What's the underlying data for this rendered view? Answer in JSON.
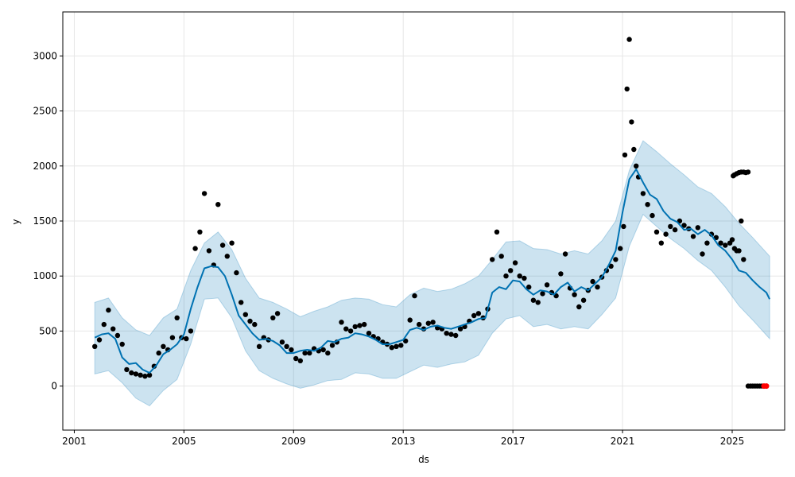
{
  "chart_data": {
    "type": "line",
    "title": "",
    "xlabel": "ds",
    "ylabel": "y",
    "grid": true,
    "xlim": [
      "2000-08-01",
      "2026-12-01"
    ],
    "ylim": [
      -400,
      3400
    ],
    "xticks": [
      "2001-01-01",
      "2005-01-01",
      "2009-01-01",
      "2013-01-01",
      "2017-01-01",
      "2021-01-01",
      "2025-01-01"
    ],
    "xtick_labels": [
      "2001",
      "2005",
      "2009",
      "2013",
      "2017",
      "2021",
      "2025"
    ],
    "yticks": [
      0,
      500,
      1000,
      1500,
      2000,
      2500,
      3000
    ],
    "ytick_labels": [
      "0",
      "500",
      "1000",
      "1500",
      "2000",
      "2500",
      "3000"
    ],
    "colors": {
      "observed": "#000000",
      "forecast_line": "#0072B2",
      "uncertainty_band": "#0072B2",
      "highlight_points": "#ff0000",
      "grid": "#e6e6e6"
    },
    "series": [
      {
        "role": "forecast",
        "x": [
          "2001-10-01",
          "2002-01-01",
          "2002-04-01",
          "2002-07-01",
          "2002-10-01",
          "2003-01-01",
          "2003-04-01",
          "2003-07-01",
          "2003-10-01",
          "2004-01-01",
          "2004-04-01",
          "2004-07-01",
          "2004-10-01",
          "2005-01-01",
          "2005-04-01",
          "2005-07-01",
          "2005-10-01",
          "2006-01-01",
          "2006-04-01",
          "2006-07-01",
          "2006-10-01",
          "2007-01-01",
          "2007-04-01",
          "2007-07-01",
          "2007-10-01",
          "2008-01-01",
          "2008-04-01",
          "2008-07-01",
          "2008-10-01",
          "2009-01-01",
          "2009-04-01",
          "2009-07-01",
          "2009-10-01",
          "2010-01-01",
          "2010-04-01",
          "2010-07-01",
          "2010-10-01",
          "2011-01-01",
          "2011-04-01",
          "2011-07-01",
          "2011-10-01",
          "2012-01-01",
          "2012-04-01",
          "2012-07-01",
          "2012-10-01",
          "2013-01-01",
          "2013-04-01",
          "2013-07-01",
          "2013-10-01",
          "2014-01-01",
          "2014-04-01",
          "2014-07-01",
          "2014-10-01",
          "2015-01-01",
          "2015-04-01",
          "2015-07-01",
          "2015-10-01",
          "2016-01-01",
          "2016-04-01",
          "2016-07-01",
          "2016-10-01",
          "2017-01-01",
          "2017-04-01",
          "2017-07-01",
          "2017-10-01",
          "2018-01-01",
          "2018-04-01",
          "2018-07-01",
          "2018-10-01",
          "2019-01-01",
          "2019-04-01",
          "2019-07-01",
          "2019-10-01",
          "2020-01-01",
          "2020-04-01",
          "2020-07-01",
          "2020-10-01",
          "2021-01-01",
          "2021-04-01",
          "2021-07-01",
          "2021-10-01",
          "2022-01-01",
          "2022-04-01",
          "2022-07-01",
          "2022-10-01",
          "2023-01-01",
          "2023-04-01",
          "2023-07-01",
          "2023-10-01",
          "2024-01-01",
          "2024-04-01",
          "2024-07-01",
          "2024-10-01",
          "2025-01-01",
          "2025-04-01",
          "2025-07-01",
          "2025-10-01",
          "2026-01-01",
          "2026-04-01",
          "2026-05-15"
        ],
        "y": [
          440,
          470,
          480,
          430,
          260,
          200,
          210,
          150,
          120,
          190,
          290,
          330,
          380,
          470,
          700,
          900,
          1070,
          1090,
          1080,
          1000,
          830,
          640,
          560,
          480,
          420,
          430,
          410,
          370,
          300,
          300,
          320,
          330,
          320,
          350,
          410,
          400,
          430,
          440,
          480,
          470,
          450,
          420,
          380,
          380,
          400,
          420,
          510,
          530,
          510,
          540,
          550,
          530,
          520,
          540,
          560,
          580,
          610,
          620,
          850,
          900,
          880,
          960,
          950,
          880,
          830,
          870,
          860,
          830,
          900,
          940,
          860,
          900,
          870,
          930,
          990,
          1100,
          1230,
          1580,
          1880,
          1970,
          1850,
          1740,
          1700,
          1590,
          1520,
          1490,
          1420,
          1430,
          1380,
          1420,
          1370,
          1280,
          1230,
          1150,
          1050,
          1030,
          960,
          900,
          850,
          790
        ]
      },
      {
        "role": "uncertainty_band",
        "x": [
          "2001-10-01",
          "2002-04-01",
          "2002-10-01",
          "2003-04-01",
          "2003-10-01",
          "2004-04-01",
          "2004-10-01",
          "2005-04-01",
          "2005-10-01",
          "2006-04-01",
          "2006-10-01",
          "2007-04-01",
          "2007-10-01",
          "2008-04-01",
          "2008-10-01",
          "2009-04-01",
          "2009-10-01",
          "2010-04-01",
          "2010-10-01",
          "2011-04-01",
          "2011-10-01",
          "2012-04-01",
          "2012-10-01",
          "2013-04-01",
          "2013-10-01",
          "2014-04-01",
          "2014-10-01",
          "2015-04-01",
          "2015-10-01",
          "2016-04-01",
          "2016-10-01",
          "2017-04-01",
          "2017-10-01",
          "2018-04-01",
          "2018-10-01",
          "2019-04-01",
          "2019-10-01",
          "2020-04-01",
          "2020-10-01",
          "2021-04-01",
          "2021-10-01",
          "2022-04-01",
          "2022-10-01",
          "2023-04-01",
          "2023-10-01",
          "2024-04-01",
          "2024-10-01",
          "2025-04-01",
          "2025-10-01",
          "2026-05-15"
        ],
        "upper": [
          760,
          800,
          620,
          510,
          460,
          620,
          700,
          1050,
          1300,
          1400,
          1240,
          980,
          800,
          760,
          700,
          630,
          680,
          720,
          780,
          800,
          790,
          740,
          720,
          830,
          890,
          860,
          880,
          930,
          1000,
          1150,
          1310,
          1320,
          1250,
          1240,
          1200,
          1230,
          1200,
          1320,
          1500,
          1960,
          2230,
          2130,
          2020,
          1920,
          1810,
          1750,
          1630,
          1480,
          1350,
          1180
        ],
        "lower": [
          110,
          140,
          30,
          -110,
          -180,
          -40,
          60,
          380,
          790,
          800,
          620,
          320,
          140,
          70,
          20,
          -20,
          10,
          50,
          60,
          120,
          110,
          70,
          70,
          130,
          190,
          170,
          200,
          220,
          280,
          480,
          610,
          640,
          540,
          560,
          520,
          540,
          520,
          650,
          800,
          1270,
          1560,
          1450,
          1340,
          1250,
          1140,
          1050,
          900,
          730,
          600,
          430
        ]
      },
      {
        "role": "observed",
        "x": [
          "2001-10-01",
          "2001-12-01",
          "2002-02-01",
          "2002-04-01",
          "2002-06-01",
          "2002-08-01",
          "2002-10-01",
          "2002-12-01",
          "2003-02-01",
          "2003-04-01",
          "2003-06-01",
          "2003-08-01",
          "2003-10-01",
          "2003-12-01",
          "2004-02-01",
          "2004-04-01",
          "2004-06-01",
          "2004-08-01",
          "2004-10-01",
          "2004-12-01",
          "2005-02-01",
          "2005-04-01",
          "2005-06-01",
          "2005-08-01",
          "2005-10-01",
          "2005-12-01",
          "2006-02-01",
          "2006-04-01",
          "2006-06-01",
          "2006-08-01",
          "2006-10-01",
          "2006-12-01",
          "2007-02-01",
          "2007-04-01",
          "2007-06-01",
          "2007-08-01",
          "2007-10-01",
          "2007-12-01",
          "2008-02-01",
          "2008-04-01",
          "2008-06-01",
          "2008-08-01",
          "2008-10-01",
          "2008-12-01",
          "2009-02-01",
          "2009-04-01",
          "2009-06-01",
          "2009-08-01",
          "2009-10-01",
          "2009-12-01",
          "2010-02-01",
          "2010-04-01",
          "2010-06-01",
          "2010-08-01",
          "2010-10-01",
          "2010-12-01",
          "2011-02-01",
          "2011-04-01",
          "2011-06-01",
          "2011-08-01",
          "2011-10-01",
          "2011-12-01",
          "2012-02-01",
          "2012-04-01",
          "2012-06-01",
          "2012-08-01",
          "2012-10-01",
          "2012-12-01",
          "2013-02-01",
          "2013-04-01",
          "2013-06-01",
          "2013-08-01",
          "2013-10-01",
          "2013-12-01",
          "2014-02-01",
          "2014-04-01",
          "2014-06-01",
          "2014-08-01",
          "2014-10-01",
          "2014-12-01",
          "2015-02-01",
          "2015-04-01",
          "2015-06-01",
          "2015-08-01",
          "2015-10-01",
          "2015-12-01",
          "2016-02-01",
          "2016-04-01",
          "2016-06-01",
          "2016-08-01",
          "2016-10-01",
          "2016-12-01",
          "2017-02-01",
          "2017-04-01",
          "2017-06-01",
          "2017-08-01",
          "2017-10-01",
          "2017-12-01",
          "2018-02-01",
          "2018-04-01",
          "2018-06-01",
          "2018-08-01",
          "2018-10-01",
          "2018-12-01",
          "2019-02-01",
          "2019-04-01",
          "2019-06-01",
          "2019-08-01",
          "2019-10-01",
          "2019-12-01",
          "2020-02-01",
          "2020-04-01",
          "2020-06-01",
          "2020-08-01",
          "2020-10-01",
          "2020-12-01",
          "2021-01-15",
          "2021-02-01",
          "2021-03-01",
          "2021-04-01",
          "2021-05-01",
          "2021-06-01",
          "2021-07-01",
          "2021-08-01",
          "2021-10-01",
          "2021-12-01",
          "2022-02-01",
          "2022-04-01",
          "2022-06-01",
          "2022-08-01",
          "2022-10-01",
          "2022-12-01",
          "2023-02-01",
          "2023-04-01",
          "2023-06-01",
          "2023-08-01",
          "2023-10-01",
          "2023-12-01",
          "2024-02-01",
          "2024-04-01",
          "2024-06-01",
          "2024-08-01",
          "2024-10-01",
          "2024-12-01",
          "2025-01-01",
          "2025-02-01",
          "2025-03-01",
          "2025-04-01",
          "2025-05-01",
          "2025-06-01"
        ],
        "y": [
          360,
          420,
          560,
          690,
          520,
          460,
          380,
          150,
          120,
          110,
          100,
          90,
          100,
          180,
          300,
          360,
          330,
          440,
          620,
          440,
          430,
          500,
          1250,
          1400,
          1750,
          1230,
          1100,
          1650,
          1280,
          1180,
          1300,
          1030,
          760,
          650,
          590,
          560,
          360,
          440,
          420,
          620,
          660,
          400,
          360,
          330,
          250,
          230,
          300,
          300,
          340,
          320,
          330,
          300,
          370,
          400,
          580,
          520,
          500,
          540,
          550,
          560,
          480,
          450,
          430,
          400,
          380,
          350,
          360,
          370,
          410,
          600,
          820,
          560,
          520,
          570,
          580,
          530,
          520,
          480,
          470,
          460,
          520,
          540,
          590,
          640,
          660,
          620,
          700,
          1150,
          1400,
          1180,
          1000,
          1050,
          1120,
          1000,
          980,
          900,
          780,
          760,
          840,
          920,
          850,
          820,
          1020,
          1200,
          890,
          830,
          720,
          780,
          870,
          950,
          900,
          990,
          1050,
          1090,
          1150,
          1250,
          1450,
          2100,
          2700,
          3150,
          2400,
          2150,
          2000,
          1900,
          1750,
          1650,
          1550,
          1400,
          1300,
          1380,
          1450,
          1420,
          1500,
          1460,
          1430,
          1360,
          1440,
          1200,
          1300,
          1380,
          1350,
          1300,
          1280,
          1300,
          1330,
          1250,
          1230,
          1230,
          1500,
          1150
        ]
      },
      {
        "role": "recent_cluster_high",
        "x": [
          "2025-01-15",
          "2025-02-01",
          "2025-03-01",
          "2025-04-01",
          "2025-05-01",
          "2025-06-01",
          "2025-07-01",
          "2025-08-01"
        ],
        "y": [
          1910,
          1920,
          1930,
          1940,
          1945,
          1945,
          1940,
          1945
        ]
      },
      {
        "role": "recent_cluster_zero",
        "x": [
          "2025-08-01",
          "2025-09-01",
          "2025-10-01",
          "2025-11-01",
          "2025-12-01",
          "2026-01-01",
          "2026-02-01"
        ],
        "y": [
          0,
          0,
          0,
          0,
          0,
          0,
          0
        ]
      },
      {
        "role": "highlight",
        "x": [
          "2026-03-01",
          "2026-04-01"
        ],
        "y": [
          0,
          0
        ]
      }
    ]
  }
}
